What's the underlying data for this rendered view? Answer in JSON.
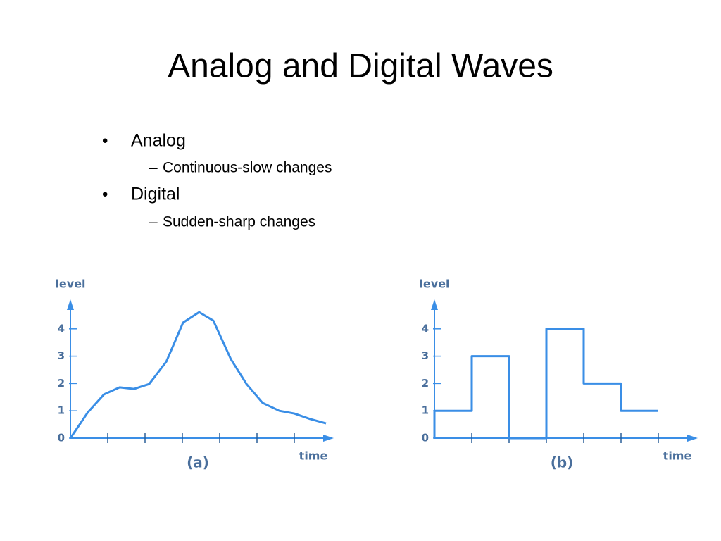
{
  "title": "Analog and Digital Waves",
  "bullets": [
    {
      "text": "Analog",
      "sub": "Continuous-slow changes"
    },
    {
      "text": "Digital",
      "sub": "Sudden-sharp changes"
    }
  ],
  "chart_data": [
    {
      "type": "line",
      "y_label": "level",
      "x_label": "time",
      "caption": "(a)",
      "color": "#3a8ee6",
      "x": [
        0,
        0.47,
        0.9,
        1.32,
        1.7,
        2.11,
        2.57,
        3.02,
        3.45,
        3.83,
        4.3,
        4.72,
        5.15,
        5.6,
        6,
        6.42,
        6.85
      ],
      "values": [
        0,
        0.95,
        1.6,
        1.86,
        1.8,
        1.98,
        2.8,
        4.23,
        4.61,
        4.3,
        2.89,
        1.98,
        1.29,
        1,
        0.9,
        0.7,
        0.54
      ],
      "xlim": [
        0,
        7
      ],
      "ylim": [
        0,
        5
      ],
      "xticks": [
        1,
        2,
        3,
        4,
        5,
        6
      ],
      "yticks": [
        0,
        1,
        2,
        3,
        4
      ]
    },
    {
      "type": "step",
      "y_label": "level",
      "x_label": "time",
      "caption": "(b)",
      "color": "#3a8ee6",
      "x": [
        0,
        1,
        2,
        3,
        4,
        5,
        6
      ],
      "values": [
        1,
        3,
        0,
        4,
        2,
        1,
        1
      ],
      "xlim": [
        0,
        7
      ],
      "ylim": [
        0,
        5
      ],
      "xticks": [
        1,
        2,
        3,
        4,
        5,
        6
      ],
      "yticks": [
        0,
        1,
        2,
        3,
        4
      ]
    }
  ]
}
